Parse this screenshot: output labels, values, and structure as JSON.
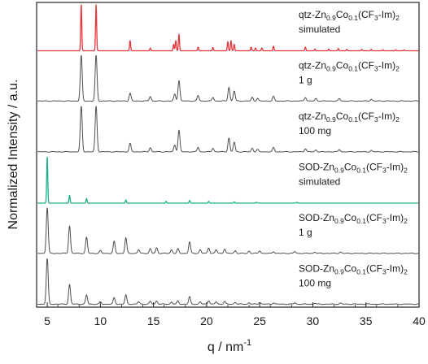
{
  "chart_data": {
    "type": "line",
    "xlabel": "q / nm",
    "xlabel_sup": "-1",
    "ylabel": "Normalized Intensity / a.u.",
    "xlim": [
      4,
      40
    ],
    "xticks": [
      5,
      10,
      15,
      20,
      25,
      30,
      35,
      40
    ],
    "y_tick_labels": "none",
    "grid": false,
    "legend": "none",
    "colors": {
      "black": "#4d4d4d",
      "red": "#e8343a",
      "green": "#1cb089",
      "axis": "#222222"
    },
    "series": [
      {
        "label_parts": [
          [
            "qtz-Zn",
            ""
          ],
          [
            "0.9",
            "sub"
          ],
          [
            "Co",
            ""
          ],
          [
            "0.1",
            "sub"
          ],
          [
            "(CF",
            ""
          ],
          [
            "3",
            "sub"
          ],
          [
            "-Im)",
            ""
          ],
          [
            "2",
            "sub"
          ]
        ],
        "label_line2": "simulated",
        "color": "red",
        "baseline": 5,
        "peaks": [
          [
            8.2,
            1.0
          ],
          [
            9.6,
            1.0
          ],
          [
            12.8,
            0.22
          ],
          [
            14.7,
            0.06
          ],
          [
            16.9,
            0.14
          ],
          [
            17.1,
            0.22
          ],
          [
            17.4,
            0.36
          ],
          [
            19.2,
            0.08
          ],
          [
            20.6,
            0.07
          ],
          [
            22.0,
            0.2
          ],
          [
            22.3,
            0.22
          ],
          [
            22.6,
            0.14
          ],
          [
            24.2,
            0.08
          ],
          [
            24.6,
            0.06
          ],
          [
            25.2,
            0.06
          ],
          [
            26.3,
            0.1
          ],
          [
            29.3,
            0.08
          ],
          [
            30.2,
            0.04
          ],
          [
            31.5,
            0.04
          ],
          [
            32.4,
            0.05
          ],
          [
            33.2,
            0.03
          ],
          [
            34.6,
            0.03
          ],
          [
            35.5,
            0.03
          ],
          [
            36.6,
            0.02
          ],
          [
            37.8,
            0.02
          ],
          [
            38.6,
            0.02
          ]
        ]
      },
      {
        "label_parts": [
          [
            "qtz-Zn",
            ""
          ],
          [
            "0.9",
            "sub"
          ],
          [
            "Co",
            ""
          ],
          [
            "0.1",
            "sub"
          ],
          [
            "(CF",
            ""
          ],
          [
            "3",
            "sub"
          ],
          [
            "-Im)",
            ""
          ],
          [
            "2",
            "sub"
          ]
        ],
        "label_line2": "1 g",
        "color": "black",
        "baseline": 4,
        "peaks": [
          [
            8.2,
            1.0
          ],
          [
            9.6,
            1.0
          ],
          [
            12.8,
            0.17
          ],
          [
            14.7,
            0.1
          ],
          [
            17.0,
            0.15
          ],
          [
            17.4,
            0.45
          ],
          [
            19.2,
            0.12
          ],
          [
            20.6,
            0.08
          ],
          [
            22.1,
            0.3
          ],
          [
            22.6,
            0.22
          ],
          [
            24.3,
            0.08
          ],
          [
            24.8,
            0.06
          ],
          [
            26.3,
            0.1
          ],
          [
            29.3,
            0.08
          ],
          [
            30.3,
            0.05
          ],
          [
            32.5,
            0.05
          ],
          [
            35.5,
            0.04
          ]
        ]
      },
      {
        "label_parts": [
          [
            "qtz-Zn",
            ""
          ],
          [
            "0.9",
            "sub"
          ],
          [
            "Co",
            ""
          ],
          [
            "0.1",
            "sub"
          ],
          [
            "(CF",
            ""
          ],
          [
            "3",
            "sub"
          ],
          [
            "-Im)",
            ""
          ],
          [
            "2",
            "sub"
          ]
        ],
        "label_line2": "100 mg",
        "color": "black",
        "baseline": 3,
        "peaks": [
          [
            8.2,
            1.0
          ],
          [
            9.6,
            1.0
          ],
          [
            12.8,
            0.18
          ],
          [
            14.7,
            0.09
          ],
          [
            17.0,
            0.15
          ],
          [
            17.4,
            0.47
          ],
          [
            19.2,
            0.1
          ],
          [
            20.6,
            0.08
          ],
          [
            22.1,
            0.3
          ],
          [
            22.6,
            0.21
          ],
          [
            24.3,
            0.08
          ],
          [
            24.8,
            0.05
          ],
          [
            26.3,
            0.09
          ],
          [
            29.3,
            0.07
          ],
          [
            30.3,
            0.04
          ],
          [
            32.5,
            0.05
          ],
          [
            35.5,
            0.03
          ]
        ]
      },
      {
        "label_parts": [
          [
            "SOD-Zn",
            ""
          ],
          [
            "0.9",
            "sub"
          ],
          [
            "Co",
            ""
          ],
          [
            "0.1",
            "sub"
          ],
          [
            "(CF",
            ""
          ],
          [
            "3",
            "sub"
          ],
          [
            "-Im)",
            ""
          ],
          [
            "2",
            "sub"
          ]
        ],
        "label_line2": "simulated",
        "color": "green",
        "baseline": 2,
        "peaks": [
          [
            5.0,
            1.0
          ],
          [
            7.1,
            0.17
          ],
          [
            8.7,
            0.1
          ],
          [
            12.4,
            0.07
          ],
          [
            16.2,
            0.04
          ],
          [
            18.4,
            0.06
          ],
          [
            20.2,
            0.04
          ],
          [
            22.6,
            0.03
          ],
          [
            24.7,
            0.02
          ],
          [
            28.5,
            0.02
          ]
        ]
      },
      {
        "label_parts": [
          [
            "SOD-Zn",
            ""
          ],
          [
            "0.9",
            "sub"
          ],
          [
            "Co",
            ""
          ],
          [
            "0.1",
            "sub"
          ],
          [
            "(CF",
            ""
          ],
          [
            "3",
            "sub"
          ],
          [
            "-Im)",
            ""
          ],
          [
            "2",
            "sub"
          ]
        ],
        "label_line2": "1 g",
        "color": "black",
        "baseline": 1,
        "peaks": [
          [
            5.0,
            1.0
          ],
          [
            7.1,
            0.6
          ],
          [
            8.7,
            0.35
          ],
          [
            10.0,
            0.06
          ],
          [
            11.3,
            0.26
          ],
          [
            12.4,
            0.34
          ],
          [
            13.6,
            0.08
          ],
          [
            14.7,
            0.1
          ],
          [
            15.3,
            0.12
          ],
          [
            16.7,
            0.08
          ],
          [
            17.3,
            0.1
          ],
          [
            18.4,
            0.25
          ],
          [
            19.4,
            0.08
          ],
          [
            20.2,
            0.12
          ],
          [
            20.9,
            0.08
          ],
          [
            21.7,
            0.1
          ],
          [
            22.7,
            0.06
          ],
          [
            24.0,
            0.05
          ],
          [
            25.0,
            0.06
          ],
          [
            26.3,
            0.04
          ],
          [
            28.3,
            0.04
          ],
          [
            30.2,
            0.03
          ],
          [
            32.6,
            0.03
          ]
        ]
      },
      {
        "label_parts": [
          [
            "SOD-Zn",
            ""
          ],
          [
            "0.9",
            "sub"
          ],
          [
            "Co",
            ""
          ],
          [
            "0.1",
            "sub"
          ],
          [
            "(CF",
            ""
          ],
          [
            "3",
            "sub"
          ],
          [
            "-Im)",
            ""
          ],
          [
            "2",
            "sub"
          ]
        ],
        "label_line2": "100 mg",
        "color": "black",
        "baseline": 0,
        "peaks": [
          [
            5.0,
            1.0
          ],
          [
            7.1,
            0.43
          ],
          [
            8.7,
            0.2
          ],
          [
            10.0,
            0.05
          ],
          [
            11.3,
            0.14
          ],
          [
            12.4,
            0.2
          ],
          [
            13.6,
            0.05
          ],
          [
            14.7,
            0.06
          ],
          [
            15.3,
            0.07
          ],
          [
            16.7,
            0.05
          ],
          [
            17.3,
            0.07
          ],
          [
            18.4,
            0.16
          ],
          [
            19.4,
            0.05
          ],
          [
            20.2,
            0.08
          ],
          [
            20.9,
            0.05
          ],
          [
            21.7,
            0.06
          ],
          [
            22.7,
            0.04
          ],
          [
            24.0,
            0.03
          ],
          [
            25.0,
            0.04
          ],
          [
            26.3,
            0.03
          ],
          [
            28.3,
            0.03
          ],
          [
            30.2,
            0.02
          ],
          [
            32.6,
            0.02
          ]
        ]
      }
    ]
  }
}
